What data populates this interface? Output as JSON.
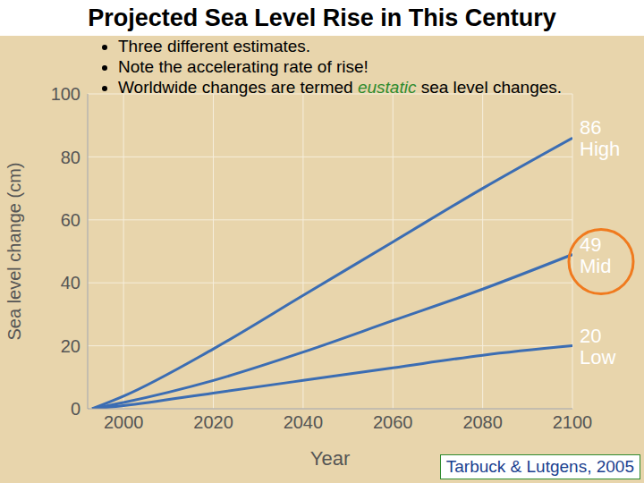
{
  "chart_data": {
    "type": "line",
    "title": "Projected Sea Level Rise in This Century",
    "annotations": [
      "Three different estimates.",
      "Note the accelerating rate of rise!",
      [
        "Worldwide changes are termed ",
        "eustatic",
        " sea level changes."
      ]
    ],
    "source": "Tarbuck & Lutgens, 2005",
    "x_label": "Year",
    "y_label": "Sea level change (cm)",
    "x": [
      1993,
      2000,
      2020,
      2040,
      2060,
      2080,
      2100
    ],
    "series": [
      {
        "name": "High",
        "color": "#3b6db3",
        "values": [
          0,
          4,
          19,
          36,
          53,
          70,
          86
        ]
      },
      {
        "name": "Mid",
        "color": "#3b6db3",
        "values": [
          0,
          2,
          9,
          18,
          28,
          38,
          49
        ]
      },
      {
        "name": "Low",
        "color": "#3b6db3",
        "values": [
          0,
          1,
          5,
          9,
          13,
          17,
          20
        ]
      }
    ],
    "xlim": [
      1992,
      2100
    ],
    "xticks": [
      2000,
      2020,
      2040,
      2060,
      2080,
      2100
    ],
    "ylim": [
      0,
      100
    ],
    "yticks": [
      0,
      20,
      40,
      60,
      80,
      100
    ],
    "grid": true
  }
}
